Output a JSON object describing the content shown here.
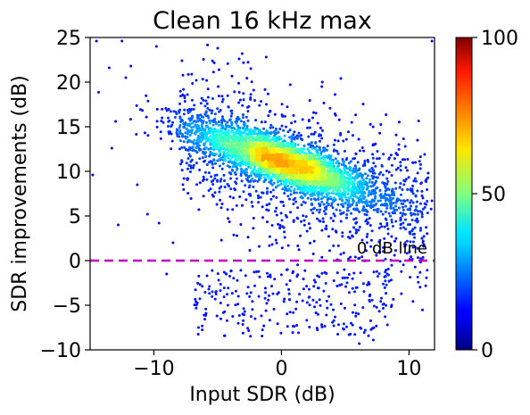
{
  "chart_data": {
    "type": "scatter",
    "title": "Clean 16 kHz max",
    "xlabel": "Input SDR (dB)",
    "ylabel": "SDR improvements (dB)",
    "xlim": [
      -15,
      12
    ],
    "ylim": [
      -10,
      25
    ],
    "xticks": [
      -10,
      0,
      10
    ],
    "xtick_labels": [
      "−10",
      "0",
      "10"
    ],
    "yticks": [
      -10,
      -5,
      0,
      5,
      10,
      15,
      20,
      25
    ],
    "ytick_labels": [
      "−10",
      "−5",
      "0",
      "5",
      "10",
      "15",
      "20",
      "25"
    ],
    "grid": false,
    "reference_line": {
      "y": 0,
      "label": "0 dB line",
      "color": "#c000c0",
      "style": "dashed"
    },
    "colorbar": {
      "colormap": "jet",
      "range": [
        0,
        100
      ],
      "ticks": [
        0,
        50,
        100
      ],
      "tick_labels": [
        "0",
        "50",
        "100"
      ]
    },
    "density_summary": {
      "main_cluster_center": [
        0,
        11
      ],
      "trend": "improvement decreases as input SDR increases (approx. slope -0.5)",
      "peak_density_region": "x from -3 to 3, y from 10 to 12.5"
    },
    "outlier_points": [
      [
        -14.5,
        24.6
      ],
      [
        -12.5,
        24.6
      ],
      [
        -9.8,
        24.0
      ],
      [
        -7.8,
        22.4
      ],
      [
        -5.0,
        23.8
      ],
      [
        -1.2,
        22.8
      ],
      [
        -13.5,
        21.6
      ],
      [
        -11.8,
        21.8
      ],
      [
        -12.2,
        20.5
      ],
      [
        3.2,
        20.0
      ],
      [
        11.8,
        24.6
      ],
      [
        -13.0,
        15.6
      ],
      [
        -14.8,
        9.6
      ],
      [
        -13.3,
        12.6
      ],
      [
        -11.3,
        8.5
      ],
      [
        -12.8,
        4.0
      ],
      [
        -10.5,
        5.2
      ],
      [
        -9.6,
        4.2
      ],
      [
        -8.5,
        2.0
      ],
      [
        -9.0,
        -1.5
      ],
      [
        -6.5,
        -7.5
      ],
      [
        -5.7,
        -3.2
      ],
      [
        -4.2,
        -5.0
      ],
      [
        5.3,
        -8.3
      ],
      [
        7.2,
        -8.9
      ],
      [
        6.1,
        -9.3
      ],
      [
        11.8,
        6.7
      ],
      [
        11.5,
        9.8
      ],
      [
        10.5,
        11.0
      ],
      [
        9.2,
        13.0
      ]
    ]
  }
}
